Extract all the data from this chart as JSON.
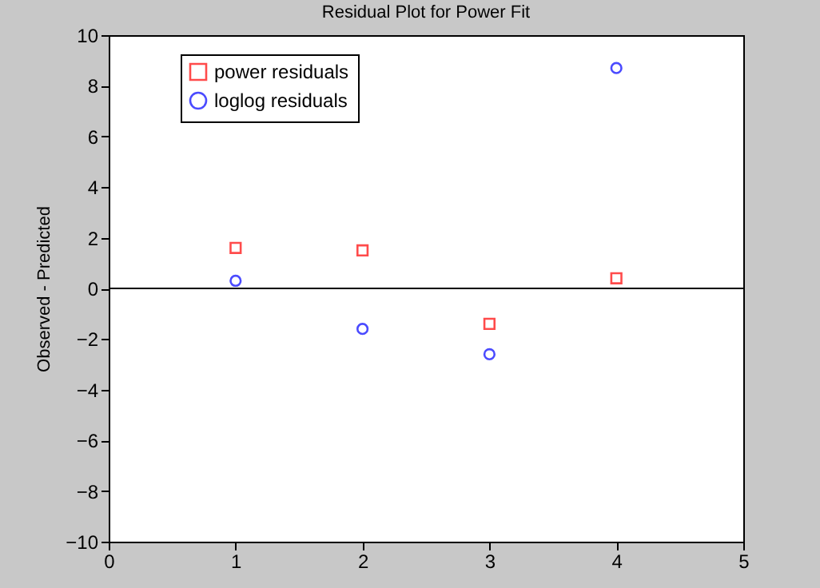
{
  "chart_data": {
    "type": "scatter",
    "title": "Residual Plot for Power Fit",
    "ylabel": "Observed  -  Predicted",
    "x": [
      1,
      2,
      3,
      4
    ],
    "series": [
      {
        "name": "power residuals",
        "color": "#ff0000",
        "marker": "square",
        "values": [
          1.6,
          1.5,
          -1.4,
          0.4
        ]
      },
      {
        "name": "loglog residuals",
        "color": "#0000ff",
        "marker": "circle",
        "values": [
          0.3,
          -1.6,
          -2.6,
          8.7
        ]
      }
    ],
    "xlim": [
      0,
      5
    ],
    "xticks": [
      0,
      1,
      2,
      3,
      4,
      5
    ],
    "ylim": [
      -10,
      10
    ],
    "yticks": [
      -10,
      -8,
      -6,
      -4,
      -2,
      0,
      2,
      4,
      6,
      8,
      10
    ],
    "ref_lines": [
      {
        "axis": "y",
        "value": 0,
        "color": "#000000",
        "line_style": "solid"
      }
    ],
    "grid": false,
    "legend": "top left"
  }
}
